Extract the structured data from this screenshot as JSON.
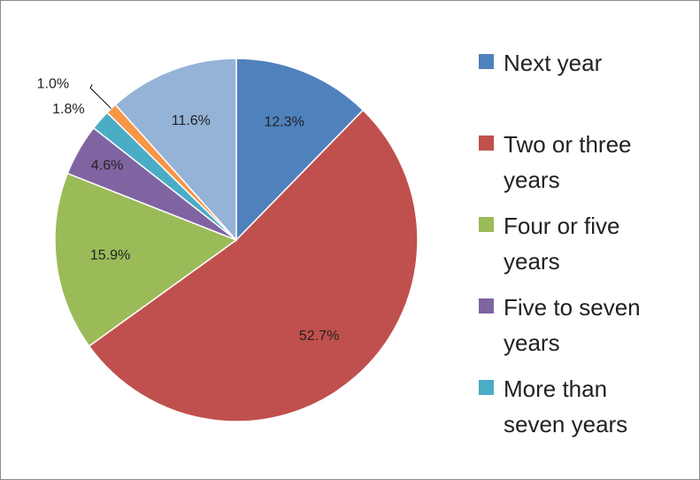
{
  "chart_data": {
    "type": "pie",
    "categories": [
      "Next year",
      "Two or three years",
      "Four or five years",
      "Five to seven years",
      "More than seven years",
      null,
      null
    ],
    "values": [
      12.3,
      52.7,
      15.9,
      4.6,
      1.8,
      1.0,
      11.6
    ],
    "value_labels": [
      "12.3%",
      "52.7%",
      "15.9%",
      "4.6%",
      "1.8%",
      "1.0%",
      "11.6%"
    ],
    "colors": [
      "#4F81BD",
      "#C0504D",
      "#9BBB59",
      "#8064A2",
      "#4BACC6",
      "#F79646",
      "#95B3D7"
    ],
    "legend": "right"
  }
}
